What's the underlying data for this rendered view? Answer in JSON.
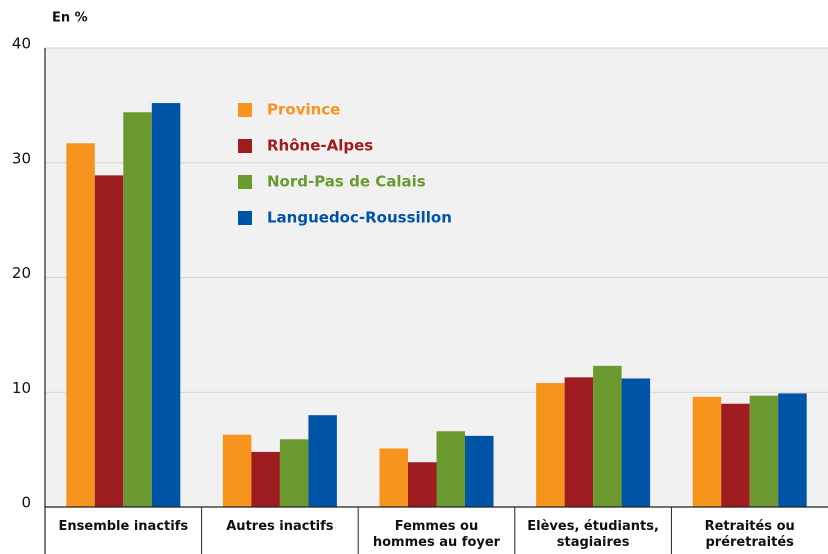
{
  "chart_data": {
    "type": "bar",
    "y_label": "En %",
    "categories": [
      "Ensemble inactifs",
      "Autres inactifs",
      "Femmes ou hommes au foyer",
      "Elèves, étudiants, stagiaires",
      "Retraités ou préretraités"
    ],
    "series": [
      {
        "name": "Province",
        "color": "#f7941d",
        "values": [
          31.7,
          6.3,
          5.1,
          10.8,
          9.6
        ]
      },
      {
        "name": "Rhône-Alpes",
        "color": "#9e1b20",
        "values": [
          28.9,
          4.8,
          3.9,
          11.3,
          9.0
        ]
      },
      {
        "name": "Nord-Pas de Calais",
        "color": "#6a9a2f",
        "values": [
          34.4,
          5.9,
          6.6,
          12.3,
          9.7
        ]
      },
      {
        "name": "Languedoc-Roussillon",
        "color": "#0054a6",
        "values": [
          35.2,
          8.0,
          6.2,
          11.2,
          9.9
        ]
      }
    ],
    "ylim": [
      0,
      40
    ],
    "yticks": [
      0,
      10,
      20,
      30,
      40
    ],
    "grid": true
  }
}
